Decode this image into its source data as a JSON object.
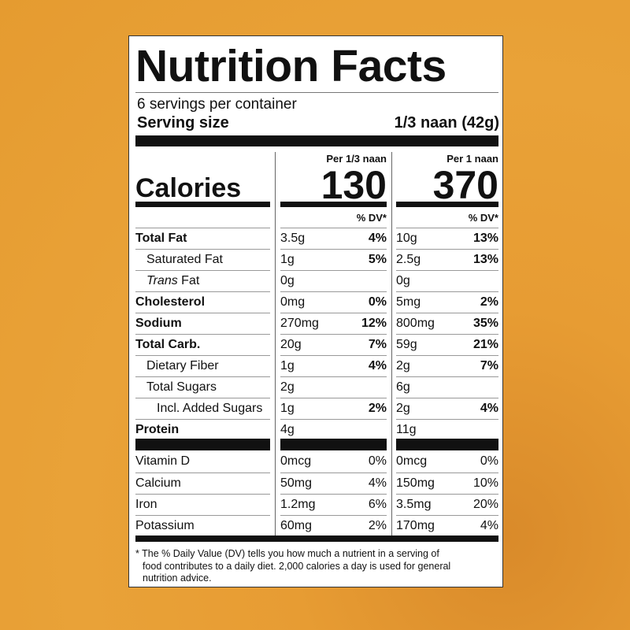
{
  "title": "Nutrition Facts",
  "servings_per_container": "6 servings per container",
  "serving_size_label": "Serving size",
  "serving_size_value": "1/3 naan (42g)",
  "calories_label": "Calories",
  "columns": [
    {
      "header": "Per 1/3 naan",
      "calories": "130",
      "dv_header": "% DV*"
    },
    {
      "header": "Per 1 naan",
      "calories": "370",
      "dv_header": "% DV*"
    }
  ],
  "nutrients": [
    {
      "label": "Total Fat",
      "bold": true,
      "indent": 0,
      "v1": "3.5g",
      "dv1": "4%",
      "v2": "10g",
      "dv2": "13%"
    },
    {
      "label": "Saturated Fat",
      "bold": false,
      "indent": 1,
      "v1": "1g",
      "dv1": "5%",
      "v2": "2.5g",
      "dv2": "13%"
    },
    {
      "label_italic": "Trans",
      "label": " Fat",
      "bold": false,
      "indent": 1,
      "v1": "0g",
      "dv1": "",
      "v2": "0g",
      "dv2": ""
    },
    {
      "label": "Cholesterol",
      "bold": true,
      "indent": 0,
      "v1": "0mg",
      "dv1": "0%",
      "v2": "5mg",
      "dv2": "2%"
    },
    {
      "label": "Sodium",
      "bold": true,
      "indent": 0,
      "v1": "270mg",
      "dv1": "12%",
      "v2": "800mg",
      "dv2": "35%"
    },
    {
      "label": "Total Carb.",
      "bold": true,
      "indent": 0,
      "v1": "20g",
      "dv1": "7%",
      "v2": "59g",
      "dv2": "21%"
    },
    {
      "label": "Dietary Fiber",
      "bold": false,
      "indent": 1,
      "v1": "1g",
      "dv1": "4%",
      "v2": "2g",
      "dv2": "7%"
    },
    {
      "label": "Total Sugars",
      "bold": false,
      "indent": 1,
      "v1": "2g",
      "dv1": "",
      "v2": "6g",
      "dv2": ""
    },
    {
      "label": "Incl. Added Sugars",
      "bold": false,
      "indent": 2,
      "v1": "1g",
      "dv1": "2%",
      "v2": "2g",
      "dv2": "4%"
    },
    {
      "label": "Protein",
      "bold": true,
      "indent": 0,
      "v1": "4g",
      "dv1": "",
      "v2": "11g",
      "dv2": ""
    }
  ],
  "vitamins": [
    {
      "label": "Vitamin D",
      "v1": "0mcg",
      "dv1": "0%",
      "v2": "0mcg",
      "dv2": "0%"
    },
    {
      "label": "Calcium",
      "v1": "50mg",
      "dv1": "4%",
      "v2": "150mg",
      "dv2": "10%"
    },
    {
      "label": "Iron",
      "v1": "1.2mg",
      "dv1": "6%",
      "v2": "3.5mg",
      "dv2": "20%"
    },
    {
      "label": "Potassium",
      "v1": "60mg",
      "dv1": "2%",
      "v2": "170mg",
      "dv2": "4%"
    }
  ],
  "footnote": {
    "line1": "* The % Daily Value (DV) tells you how much a nutrient in a serving of",
    "line2": "food contributes to a daily diet. 2,000 calories a day is used for general",
    "line3": "nutrition advice."
  }
}
